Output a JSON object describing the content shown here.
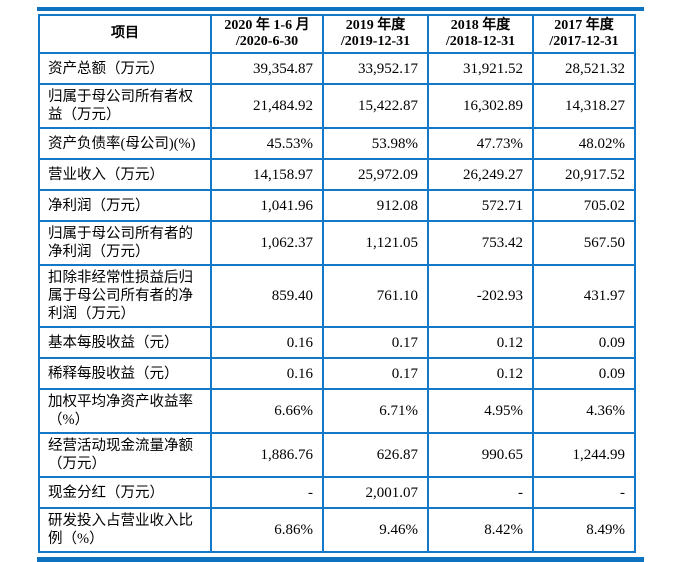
{
  "colors": {
    "border_blue": "#1478c8",
    "rule_blue": "#0d72c0",
    "text_black": "#000000",
    "page_bg": "#ffffff"
  },
  "table": {
    "header": {
      "item_label": "项目",
      "periods": [
        {
          "line1": "2020 年 1-6 月",
          "line2": "/2020-6-30"
        },
        {
          "line1": "2019 年度",
          "line2": "/2019-12-31"
        },
        {
          "line1": "2018 年度",
          "line2": "/2018-12-31"
        },
        {
          "line1": "2017 年度",
          "line2": "/2017-12-31"
        }
      ]
    },
    "rows": [
      {
        "label": "资产总额（万元）",
        "values": [
          "39,354.87",
          "33,952.17",
          "31,921.52",
          "28,521.32"
        ]
      },
      {
        "label": "归属于母公司所有者权益（万元）",
        "values": [
          "21,484.92",
          "15,422.87",
          "16,302.89",
          "14,318.27"
        ]
      },
      {
        "label": "资产负债率(母公司)(%)",
        "values": [
          "45.53%",
          "53.98%",
          "47.73%",
          "48.02%"
        ]
      },
      {
        "label": "营业收入（万元）",
        "values": [
          "14,158.97",
          "25,972.09",
          "26,249.27",
          "20,917.52"
        ]
      },
      {
        "label": "净利润（万元）",
        "values": [
          "1,041.96",
          "912.08",
          "572.71",
          "705.02"
        ]
      },
      {
        "label": "归属于母公司所有者的净利润（万元）",
        "values": [
          "1,062.37",
          "1,121.05",
          "753.42",
          "567.50"
        ]
      },
      {
        "label": "扣除非经常性损益后归属于母公司所有者的净利润（万元）",
        "values": [
          "859.40",
          "761.10",
          "-202.93",
          "431.97"
        ]
      },
      {
        "label": "基本每股收益（元）",
        "values": [
          "0.16",
          "0.17",
          "0.12",
          "0.09"
        ]
      },
      {
        "label": "稀释每股收益（元）",
        "values": [
          "0.16",
          "0.17",
          "0.12",
          "0.09"
        ]
      },
      {
        "label": "加权平均净资产收益率（%）",
        "values": [
          "6.66%",
          "6.71%",
          "4.95%",
          "4.36%"
        ]
      },
      {
        "label": "经营活动现金流量净额（万元）",
        "values": [
          "1,886.76",
          "626.87",
          "990.65",
          "1,244.99"
        ]
      },
      {
        "label": "现金分红（万元）",
        "values": [
          "-",
          "2,001.07",
          "-",
          "-"
        ]
      },
      {
        "label": "研发投入占营业收入比例（%）",
        "values": [
          "6.86%",
          "9.46%",
          "8.42%",
          "8.49%"
        ]
      }
    ]
  }
}
